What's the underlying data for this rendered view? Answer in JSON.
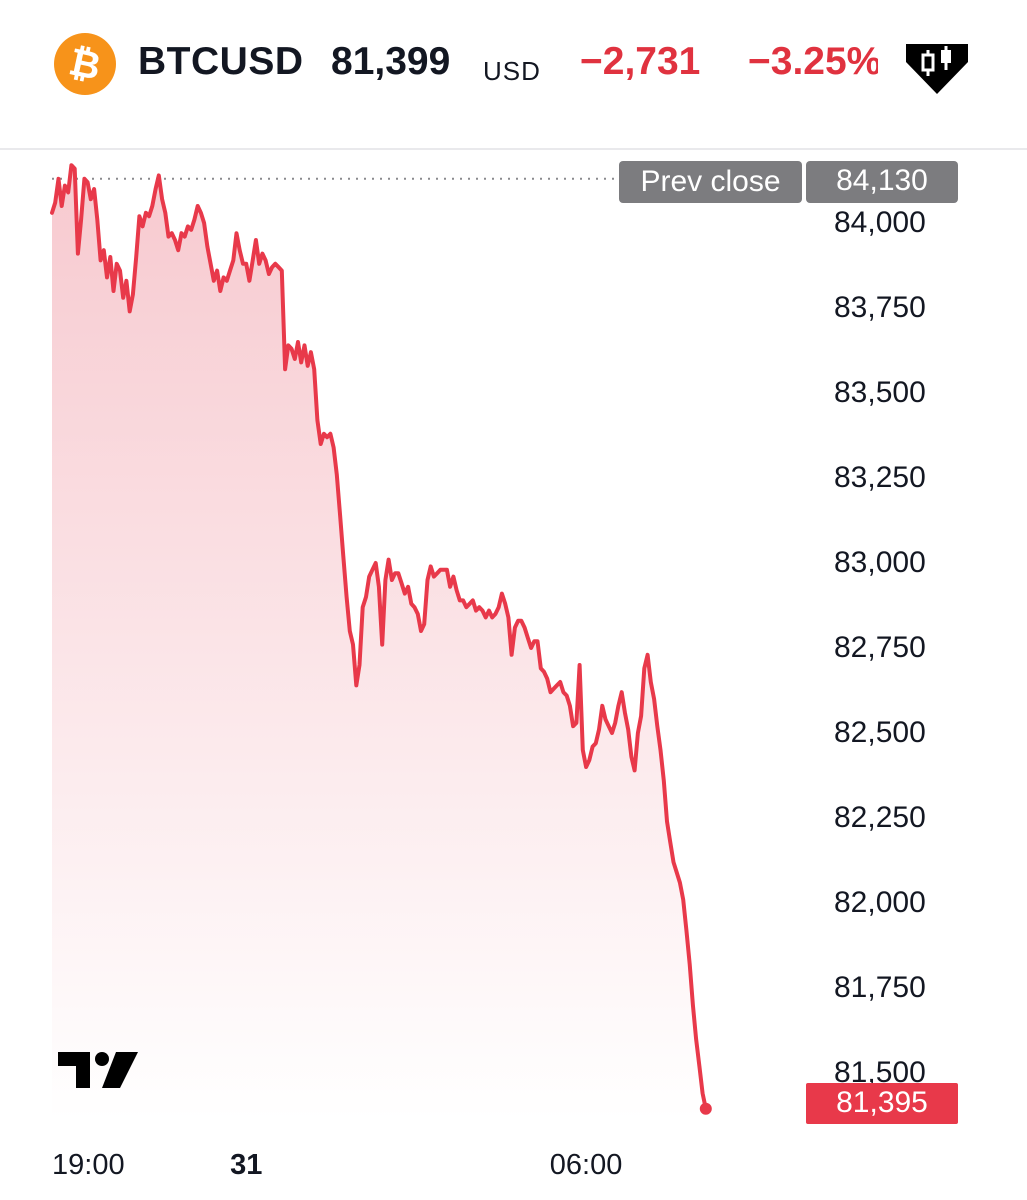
{
  "header": {
    "symbol": "BTCUSD",
    "price": "81,399",
    "currency": "USD",
    "change": "−2,731",
    "change_pct": "−3.25%",
    "coin_icon": "bitcoin-icon",
    "menu_icon": "candlestick-icon"
  },
  "colors": {
    "line": "#e8394a",
    "area_top": "#f7c9cf",
    "area_bottom": "#ffffff",
    "label_bg": "#7c7c7f",
    "last_bg": "#e8394a",
    "brand": "#f7931a"
  },
  "prev_close": {
    "label": "Prev close",
    "value": "84,130"
  },
  "last_price": {
    "value": "81,395"
  },
  "chart_data": {
    "type": "area",
    "y_ticks": [
      "84,000",
      "83,750",
      "83,500",
      "83,250",
      "83,000",
      "82,750",
      "82,500",
      "82,250",
      "82,000",
      "81,750",
      "81,500"
    ],
    "x_ticks": [
      {
        "label": "19:00",
        "x": 0
      },
      {
        "label": "31",
        "x": 60
      },
      {
        "label": "06:00",
        "x": 165
      }
    ],
    "ylim": [
      81300,
      84200
    ],
    "prev_close": 84130,
    "x": [
      0,
      1,
      2,
      3,
      4,
      5,
      6,
      7,
      8,
      9,
      10,
      11,
      12,
      13,
      14,
      15,
      16,
      17,
      18,
      19,
      20,
      21,
      22,
      23,
      24,
      25,
      26,
      27,
      28,
      29,
      30,
      31,
      32,
      33,
      34,
      35,
      36,
      37,
      38,
      39,
      40,
      41,
      42,
      43,
      44,
      45,
      46,
      47,
      48,
      49,
      50,
      51,
      52,
      53,
      54,
      55,
      56,
      57,
      58,
      59,
      60,
      61,
      62,
      63,
      64,
      65,
      66,
      67,
      68,
      69,
      70,
      71,
      72,
      73,
      74,
      75,
      76,
      77,
      78,
      79,
      80,
      81,
      82,
      83,
      84,
      85,
      86,
      87,
      88,
      89,
      90,
      91,
      92,
      93,
      94,
      95,
      96,
      97,
      98,
      99,
      100,
      101,
      102,
      103,
      104,
      105,
      106,
      107,
      108,
      109,
      110,
      111,
      112,
      113,
      114,
      115,
      116,
      117,
      118,
      119,
      120,
      121,
      122,
      123,
      124,
      125,
      126,
      127,
      128,
      129,
      130,
      131,
      132,
      133,
      134,
      135,
      136,
      137,
      138,
      139,
      140,
      141,
      142,
      143,
      144,
      145,
      146,
      147,
      148,
      149,
      150,
      151,
      152,
      153,
      154,
      155,
      156,
      157,
      158,
      159,
      160,
      161,
      162,
      163,
      164,
      165,
      166,
      167,
      168,
      169,
      170,
      171,
      172,
      173,
      174,
      175,
      176,
      177,
      178,
      179,
      180,
      181,
      182,
      183,
      184,
      185,
      186,
      187,
      188,
      189,
      190,
      191,
      192,
      193,
      194,
      195,
      196,
      197,
      198,
      199,
      200,
      201,
      202,
      203,
      204,
      205,
      206,
      207,
      208,
      209,
      210,
      211,
      212,
      213,
      214,
      215,
      216,
      217,
      218,
      219,
      220,
      221,
      222,
      223,
      224,
      225,
      226,
      227,
      228
    ],
    "series": [
      {
        "values": [
          84030,
          84060,
          84130,
          84050,
          84110,
          84090,
          84170,
          84160,
          83910,
          84010,
          84130,
          84120,
          84070,
          84100,
          84010,
          83890,
          83920,
          83840,
          83900,
          83800,
          83880,
          83860,
          83780,
          83830,
          83740,
          83790,
          83900,
          84020,
          83990,
          84030,
          84020,
          84050,
          84100,
          84140,
          84070,
          84030,
          83960,
          83970,
          83950,
          83920,
          83970,
          83960,
          83990,
          83980,
          84010,
          84050,
          84030,
          84000,
          83930,
          83880,
          83830,
          83860,
          83800,
          83840,
          83830,
          83860,
          83890,
          83970,
          83920,
          83880,
          83880,
          83830,
          83890,
          83950,
          83880,
          83910,
          83890,
          83850,
          83870,
          83880,
          83870,
          83860,
          83570,
          83640,
          83630,
          83600,
          83650,
          83590,
          83640,
          83580,
          83620,
          83570,
          83420,
          83350,
          83380,
          83370,
          83380,
          83340,
          83260,
          83140,
          83020,
          82900,
          82800,
          82760,
          82640,
          82700,
          82870,
          82900,
          82960,
          82980,
          83000,
          82930,
          82760,
          82950,
          83010,
          82950,
          82970,
          82970,
          82940,
          82910,
          82930,
          82880,
          82870,
          82850,
          82800,
          82820,
          82950,
          82990,
          82960,
          82970,
          82980,
          82980,
          82980,
          82930,
          82960,
          82920,
          82890,
          82890,
          82870,
          82880,
          82890,
          82860,
          82870,
          82860,
          82840,
          82860,
          82840,
          82850,
          82870,
          82910,
          82880,
          82840,
          82730,
          82810,
          82830,
          82830,
          82810,
          82780,
          82750,
          82770,
          82770,
          82690,
          82680,
          82660,
          82620,
          82630,
          82640,
          82650,
          82620,
          82610,
          82580,
          82520,
          82530,
          82700,
          82450,
          82400,
          82420,
          82460,
          82470,
          82510,
          82580,
          82540,
          82520,
          82500,
          82530,
          82580,
          82620,
          82560,
          82510,
          82430,
          82390,
          82500,
          82550,
          82690,
          82730,
          82650,
          82600,
          82520,
          82450,
          82360,
          82240,
          82180,
          82120,
          82090,
          82060,
          82010,
          81920,
          81820,
          81700,
          81600,
          81520,
          81440,
          81395,
          81420,
          81450,
          81470,
          81490,
          81500,
          81450,
          81430,
          81410,
          81400,
          81395,
          81398,
          81399,
          81402,
          81395,
          81397,
          81399,
          81396,
          81395,
          81398,
          81397,
          81399,
          81395,
          81396,
          81397,
          81395,
          81395
        ]
      }
    ]
  },
  "branding": {
    "logo": "tradingview-logo"
  }
}
